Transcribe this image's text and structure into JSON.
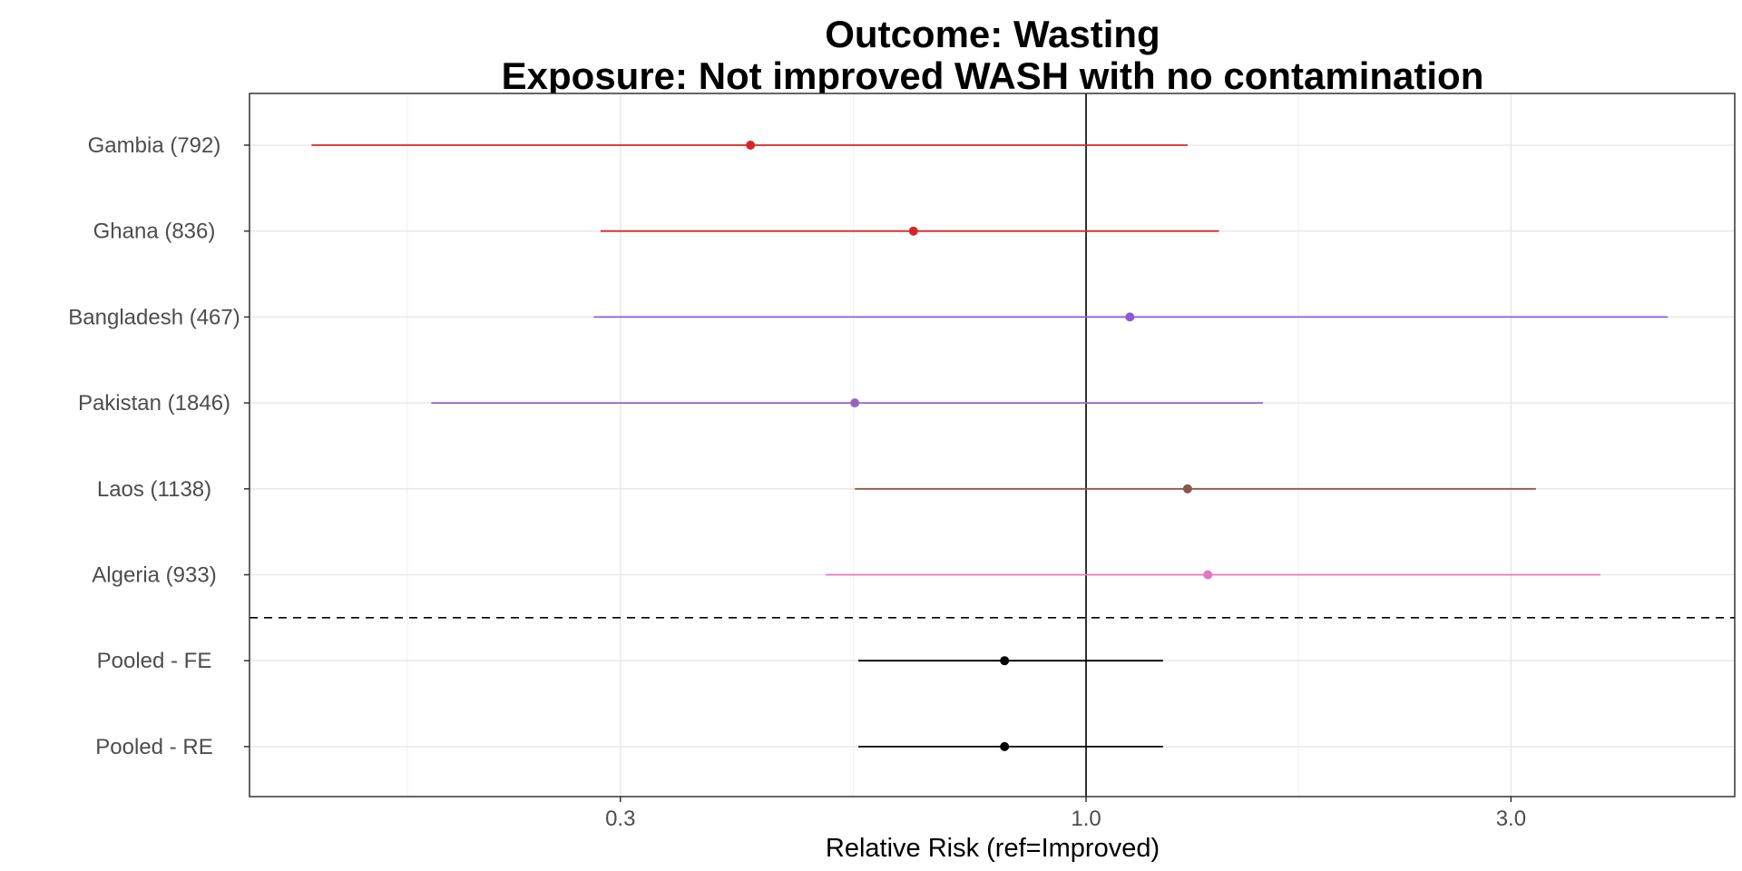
{
  "chart_data": {
    "type": "forest",
    "title_line1": "Outcome: Wasting",
    "title_line2": "Exposure: Not improved WASH with no contamination",
    "xlabel": "Relative Risk (ref=Improved)",
    "x_scale": "log",
    "xlim": [
      0.115,
      5.35
    ],
    "x_ticks": [
      {
        "value": 0.3,
        "label": "0.3"
      },
      {
        "value": 1.0,
        "label": "1.0"
      },
      {
        "value": 3.0,
        "label": "3.0"
      }
    ],
    "x_minor_ticks": [
      0.173,
      0.548,
      1.732
    ],
    "reference_line": 1.0,
    "separator_after_index": 5,
    "grid": true,
    "rows": [
      {
        "label": "Gambia (792)",
        "estimate": 0.42,
        "lower": 0.135,
        "upper": 1.3,
        "color": "#d62728"
      },
      {
        "label": "Ghana (836)",
        "estimate": 0.64,
        "lower": 0.285,
        "upper": 1.41,
        "color": "#d62728"
      },
      {
        "label": "Bangladesh (467)",
        "estimate": 1.12,
        "lower": 0.28,
        "upper": 4.5,
        "color": "#8e5ad8"
      },
      {
        "label": "Pakistan (1846)",
        "estimate": 0.55,
        "lower": 0.184,
        "upper": 1.58,
        "color": "#9467bd"
      },
      {
        "label": "Laos (1138)",
        "estimate": 1.3,
        "lower": 0.55,
        "upper": 3.2,
        "color": "#8c564b"
      },
      {
        "label": "Algeria (933)",
        "estimate": 1.37,
        "lower": 0.51,
        "upper": 3.78,
        "color": "#e377c2"
      },
      {
        "label": "Pooled - FE",
        "estimate": 0.81,
        "lower": 0.555,
        "upper": 1.22,
        "color": "#000000"
      },
      {
        "label": "Pooled - RE",
        "estimate": 0.81,
        "lower": 0.555,
        "upper": 1.22,
        "color": "#000000"
      }
    ]
  }
}
